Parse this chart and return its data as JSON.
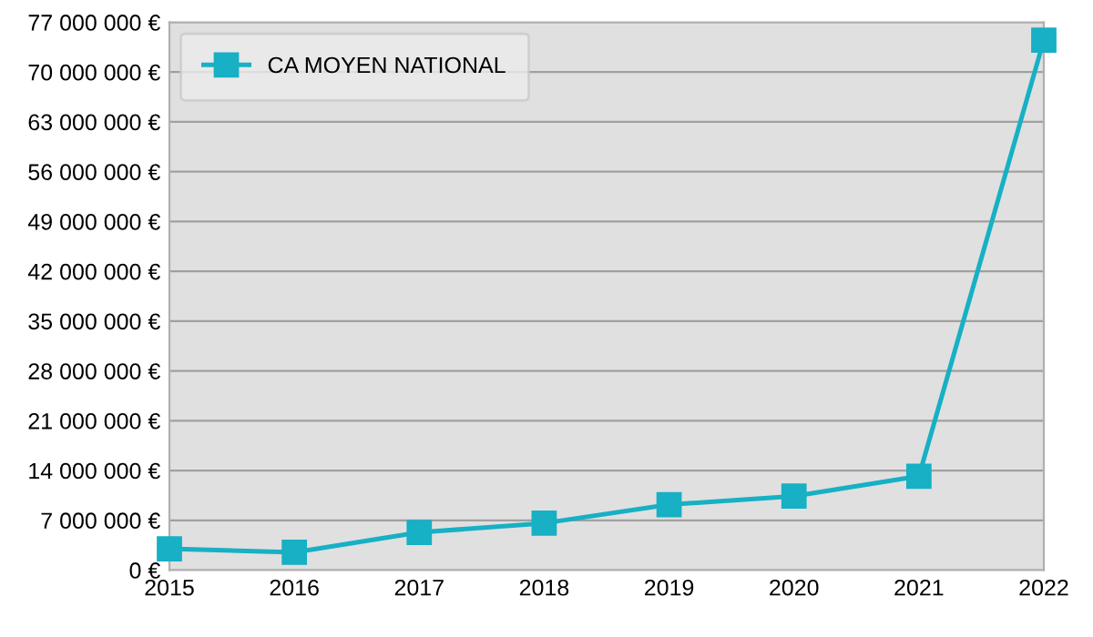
{
  "chart_data": {
    "type": "line",
    "categories": [
      "2015",
      "2016",
      "2017",
      "2018",
      "2019",
      "2020",
      "2021",
      "2022"
    ],
    "series": [
      {
        "name": "CA MOYEN NATIONAL",
        "color": "#17b0c4",
        "values": [
          3000000,
          2500000,
          5300000,
          6600000,
          9200000,
          10400000,
          13200000,
          74500000
        ]
      }
    ],
    "ylim": [
      0,
      77000000
    ],
    "yticks": [
      {
        "value": 0,
        "label": "0 €"
      },
      {
        "value": 7000000,
        "label": "7 000 000 €"
      },
      {
        "value": 14000000,
        "label": "14 000 000 €"
      },
      {
        "value": 21000000,
        "label": "21 000 000 €"
      },
      {
        "value": 28000000,
        "label": "28 000 000 €"
      },
      {
        "value": 35000000,
        "label": "35 000 000 €"
      },
      {
        "value": 42000000,
        "label": "42 000 000 €"
      },
      {
        "value": 49000000,
        "label": "49 000 000 €"
      },
      {
        "value": 56000000,
        "label": "56 000 000 €"
      },
      {
        "value": 63000000,
        "label": "63 000 000 €"
      },
      {
        "value": 70000000,
        "label": "70 000 000 €"
      },
      {
        "value": 77000000,
        "label": "77 000 000 €"
      }
    ],
    "grid": "y",
    "legend": "top left",
    "marker": "square",
    "line_style": "solid"
  }
}
